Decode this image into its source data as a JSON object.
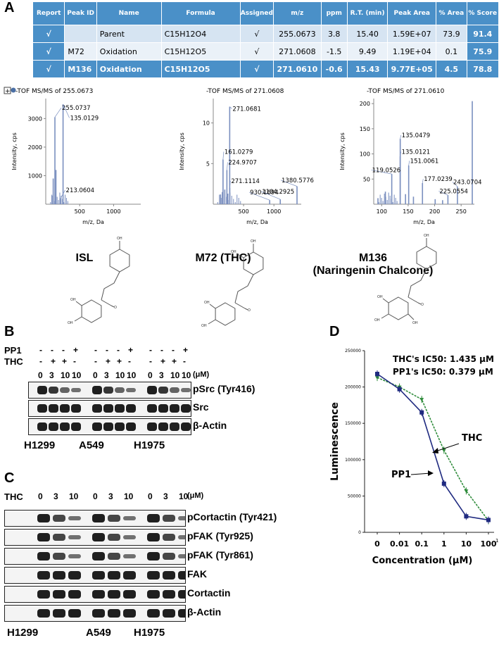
{
  "panels": {
    "a": "A",
    "b": "B",
    "c": "C",
    "d": "D"
  },
  "table": {
    "headers": [
      "Report",
      "Peak ID",
      "Name",
      "Formula",
      "Assigned",
      "m/z",
      "ppm",
      "R.T. (min)",
      "Peak Area",
      "% Area",
      "% Score"
    ],
    "rows": [
      [
        "√",
        "",
        "Parent",
        "C15H12O4",
        "√",
        "255.0673",
        "3.8",
        "15.40",
        "1.59E+07",
        "73.9",
        "91.4"
      ],
      [
        "√",
        "M72",
        "Oxidation",
        "C15H12O5",
        "√",
        "271.0608",
        "-1.5",
        "9.49",
        "1.19E+04",
        "0.1",
        "75.9"
      ],
      [
        "√",
        "M136",
        "Oxidation",
        "C15H12O5",
        "√",
        "271.0610",
        "-0.6",
        "15.43",
        "9.77E+05",
        "4.5",
        "78.8"
      ]
    ]
  },
  "spectra": [
    {
      "title": "-TOF MS/MS of 255.0673",
      "legend_prefix": "+",
      "ylabel": "Intensity, cps",
      "xlabel": "m/z, Da",
      "yticks": [
        "1000",
        "2000",
        "3000"
      ],
      "xticks": [
        "500",
        "1000"
      ],
      "peaks": [
        [
          135.0129,
          3050
        ],
        [
          255.0737,
          3500
        ],
        [
          213.0604,
          180
        ],
        [
          110,
          900
        ],
        [
          150,
          1200
        ],
        [
          91,
          300
        ]
      ],
      "labels": [
        "255.0737",
        "135.0129",
        "213.0604"
      ],
      "xlim": [
        0,
        1400
      ],
      "ylim": [
        0,
        3700
      ]
    },
    {
      "title": "-TOF MS/MS of 271.0608",
      "ylabel": "Intensity, cps",
      "xlabel": "m/z, Da",
      "yticks": [
        "5",
        "10"
      ],
      "xticks": [
        "500",
        "1000"
      ],
      "peaks": [
        [
          271.0681,
          12
        ],
        [
          161.0279,
          5.5
        ],
        [
          224.9707,
          4.2
        ],
        [
          271.1114,
          2
        ],
        [
          930.1694,
          0.5
        ],
        [
          1104.2925,
          0.6
        ],
        [
          1380.5776,
          2.2
        ],
        [
          150,
          1.5
        ],
        [
          190,
          1.8
        ],
        [
          120,
          1.2
        ],
        [
          240,
          1.3
        ]
      ],
      "labels": [
        "271.0681",
        "161.0279",
        "224.9707",
        "271.1114",
        "930.1694",
        "1104.2925",
        "1380.5776"
      ],
      "xlim": [
        0,
        1450
      ],
      "ylim": [
        0,
        13
      ]
    },
    {
      "title": "-TOF MS/MS of 271.0610",
      "ylabel": "Intensity, cps",
      "xlabel": "m/z, Da",
      "yticks": [
        "50",
        "100",
        "150",
        "200"
      ],
      "xticks": [
        "100",
        "150",
        "200",
        "250"
      ],
      "peaks": [
        [
          135.0479,
          130
        ],
        [
          135.0121,
          95
        ],
        [
          151.0061,
          77
        ],
        [
          119.0526,
          60
        ],
        [
          177.0239,
          42
        ],
        [
          225.0554,
          18
        ],
        [
          243.0704,
          35
        ],
        [
          271.061,
          205
        ],
        [
          107,
          25
        ],
        [
          93,
          12
        ],
        [
          145,
          20
        ],
        [
          160,
          15
        ],
        [
          201,
          10
        ],
        [
          215,
          8
        ]
      ],
      "labels": [
        "135.0479",
        "135.0121",
        "151.0061",
        "119.0526",
        "177.0239",
        "225.0554",
        "243.0704"
      ],
      "xlim": [
        85,
        275
      ],
      "ylim": [
        0,
        210
      ]
    }
  ],
  "structures": [
    "ISL",
    "M72 (THC)",
    "M136\n(Naringenin Chalcone)"
  ],
  "blotB": {
    "rows": [
      {
        "label": "PP1",
        "values": [
          "-",
          "-",
          "-",
          "+",
          "-",
          "-",
          "-",
          "+",
          "-",
          "-",
          "-",
          "+"
        ]
      },
      {
        "label": "THC",
        "values": [
          "-",
          "+",
          "+",
          "-",
          "-",
          "+",
          "+",
          "-",
          "-",
          "+",
          "+",
          "-"
        ]
      }
    ],
    "conc": [
      "0",
      "3",
      "10",
      "10",
      "0",
      "3",
      "10",
      "10",
      "0",
      "3",
      "10",
      "10"
    ],
    "unit": "(μM)",
    "antibodies": [
      "pSrc (Tyr416)",
      "Src",
      "β-Actin"
    ],
    "cells": [
      "H1299",
      "A549",
      "H1975"
    ]
  },
  "blotC": {
    "treat": "THC",
    "conc": [
      "0",
      "3",
      "10",
      "0",
      "3",
      "10",
      "0",
      "3",
      "10"
    ],
    "unit": "(μM)",
    "antibodies": [
      "pCortactin (Tyr421)",
      "pFAK (Tyr925)",
      "pFAK (Tyr861)",
      "FAK",
      "Cortactin",
      "β-Actin"
    ],
    "cells": [
      "H1299",
      "A549",
      "H1975"
    ]
  },
  "chart_data": {
    "type": "line",
    "x": [
      "0",
      "0.01",
      "0.1",
      "1",
      "10",
      "100"
    ],
    "ylabel": "Luminescence",
    "xlabel": "Concentration (μM)",
    "ylim": [
      0,
      250000
    ],
    "yticks": [
      "0",
      "50000",
      "100000",
      "150000",
      "200000",
      "250000"
    ],
    "annotations": [
      "THC's IC50:  1.435 μM",
      "PP1's IC50:  0.379 μM"
    ],
    "series": [
      {
        "name": "THC",
        "color": "#2e8b3a",
        "values": [
          213000,
          200000,
          183000,
          113000,
          57000,
          16000
        ]
      },
      {
        "name": "PP1",
        "color": "#1f2a80",
        "values": [
          218000,
          197000,
          165000,
          67000,
          22000,
          17000
        ]
      }
    ],
    "x_end_mark": "1"
  }
}
